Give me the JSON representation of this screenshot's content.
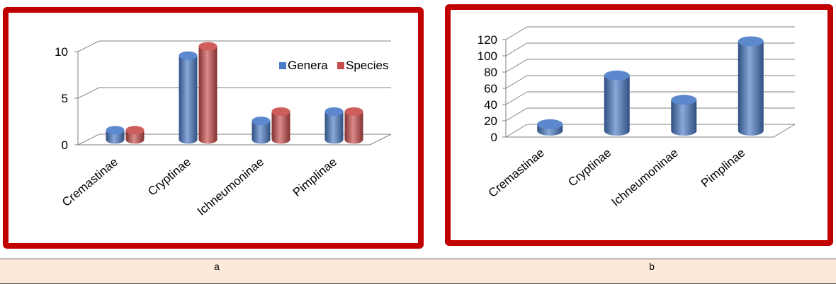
{
  "captions": {
    "a": "a",
    "b": "b"
  },
  "colors": {
    "frame": "#c00000",
    "genera": "#4a7bc8",
    "species": "#c84c4a",
    "caption_bg": "#fde9d9"
  },
  "chart_data": [
    {
      "type": "bar",
      "title": "",
      "xlabel": "",
      "ylabel": "",
      "categories": [
        "Cremastinae",
        "Cryptinae",
        "Ichneumoninae",
        "Pimplinae"
      ],
      "series": [
        {
          "name": "Genera",
          "values": [
            1,
            9,
            2,
            3
          ]
        },
        {
          "name": "Species",
          "values": [
            1,
            10,
            3,
            3
          ]
        }
      ],
      "ylim": [
        0,
        10
      ],
      "yticks": [
        0,
        5,
        10
      ],
      "legend": "top-right",
      "grid": true
    },
    {
      "type": "bar",
      "title": "",
      "xlabel": "",
      "ylabel": "",
      "categories": [
        "Cremastinae",
        "Cryptinae",
        "Ichneumoninae",
        "Pimplinae"
      ],
      "series": [
        {
          "values": [
            8,
            68,
            38,
            110
          ]
        }
      ],
      "ylim": [
        0,
        120
      ],
      "yticks": [
        0,
        20,
        40,
        60,
        80,
        100,
        120
      ],
      "grid": true
    }
  ]
}
